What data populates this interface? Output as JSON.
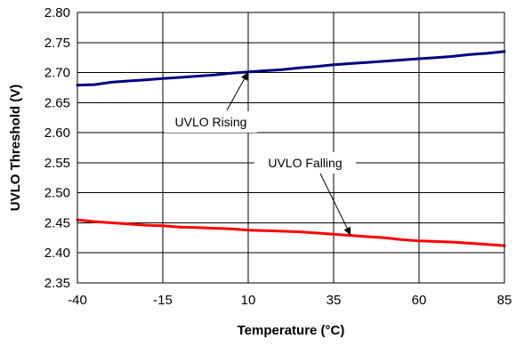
{
  "chart_data": {
    "type": "line",
    "title": "",
    "xlabel": "Temperature (°C)",
    "ylabel": "UVLO Threshold (V)",
    "xlim": [
      -40,
      85
    ],
    "ylim": [
      2.35,
      2.8
    ],
    "x_ticks": [
      "-40",
      "-15",
      "10",
      "35",
      "60",
      "85"
    ],
    "y_ticks": [
      "2.35",
      "2.40",
      "2.45",
      "2.50",
      "2.55",
      "2.60",
      "2.65",
      "2.70",
      "2.75",
      "2.80"
    ],
    "x_tick_values": [
      -40,
      -15,
      10,
      35,
      60,
      85
    ],
    "y_tick_values": [
      2.35,
      2.4,
      2.45,
      2.5,
      2.55,
      2.6,
      2.65,
      2.7,
      2.75,
      2.8
    ],
    "grid": true,
    "legend": "none",
    "series": [
      {
        "name": "UVLO Rising",
        "color": "#000080",
        "x": [
          -40,
          -35,
          -30,
          -25,
          -20,
          -15,
          -10,
          -5,
          0,
          5,
          10,
          15,
          20,
          25,
          30,
          35,
          40,
          45,
          50,
          55,
          60,
          65,
          70,
          75,
          80,
          85
        ],
        "y": [
          2.679,
          2.68,
          2.684,
          2.686,
          2.688,
          2.69,
          2.692,
          2.694,
          2.696,
          2.699,
          2.701,
          2.703,
          2.705,
          2.708,
          2.71,
          2.713,
          2.715,
          2.717,
          2.719,
          2.721,
          2.723,
          2.725,
          2.727,
          2.73,
          2.732,
          2.735
        ]
      },
      {
        "name": "UVLO Falling",
        "color": "#FF0000",
        "x": [
          -40,
          -35,
          -30,
          -25,
          -20,
          -15,
          -10,
          -5,
          0,
          5,
          10,
          15,
          20,
          25,
          30,
          35,
          40,
          45,
          50,
          55,
          60,
          65,
          70,
          75,
          80,
          85
        ],
        "y": [
          2.455,
          2.452,
          2.45,
          2.448,
          2.446,
          2.445,
          2.443,
          2.442,
          2.441,
          2.44,
          2.438,
          2.437,
          2.436,
          2.435,
          2.433,
          2.431,
          2.429,
          2.427,
          2.425,
          2.422,
          2.42,
          2.419,
          2.418,
          2.416,
          2.414,
          2.412
        ]
      }
    ],
    "annotations": [
      {
        "text": "UVLO Rising",
        "series": 0,
        "pointer_x": 10,
        "pointer_y": 2.701
      },
      {
        "text": "UVLO Falling",
        "series": 1,
        "pointer_x": 40,
        "pointer_y": 2.429
      }
    ]
  }
}
